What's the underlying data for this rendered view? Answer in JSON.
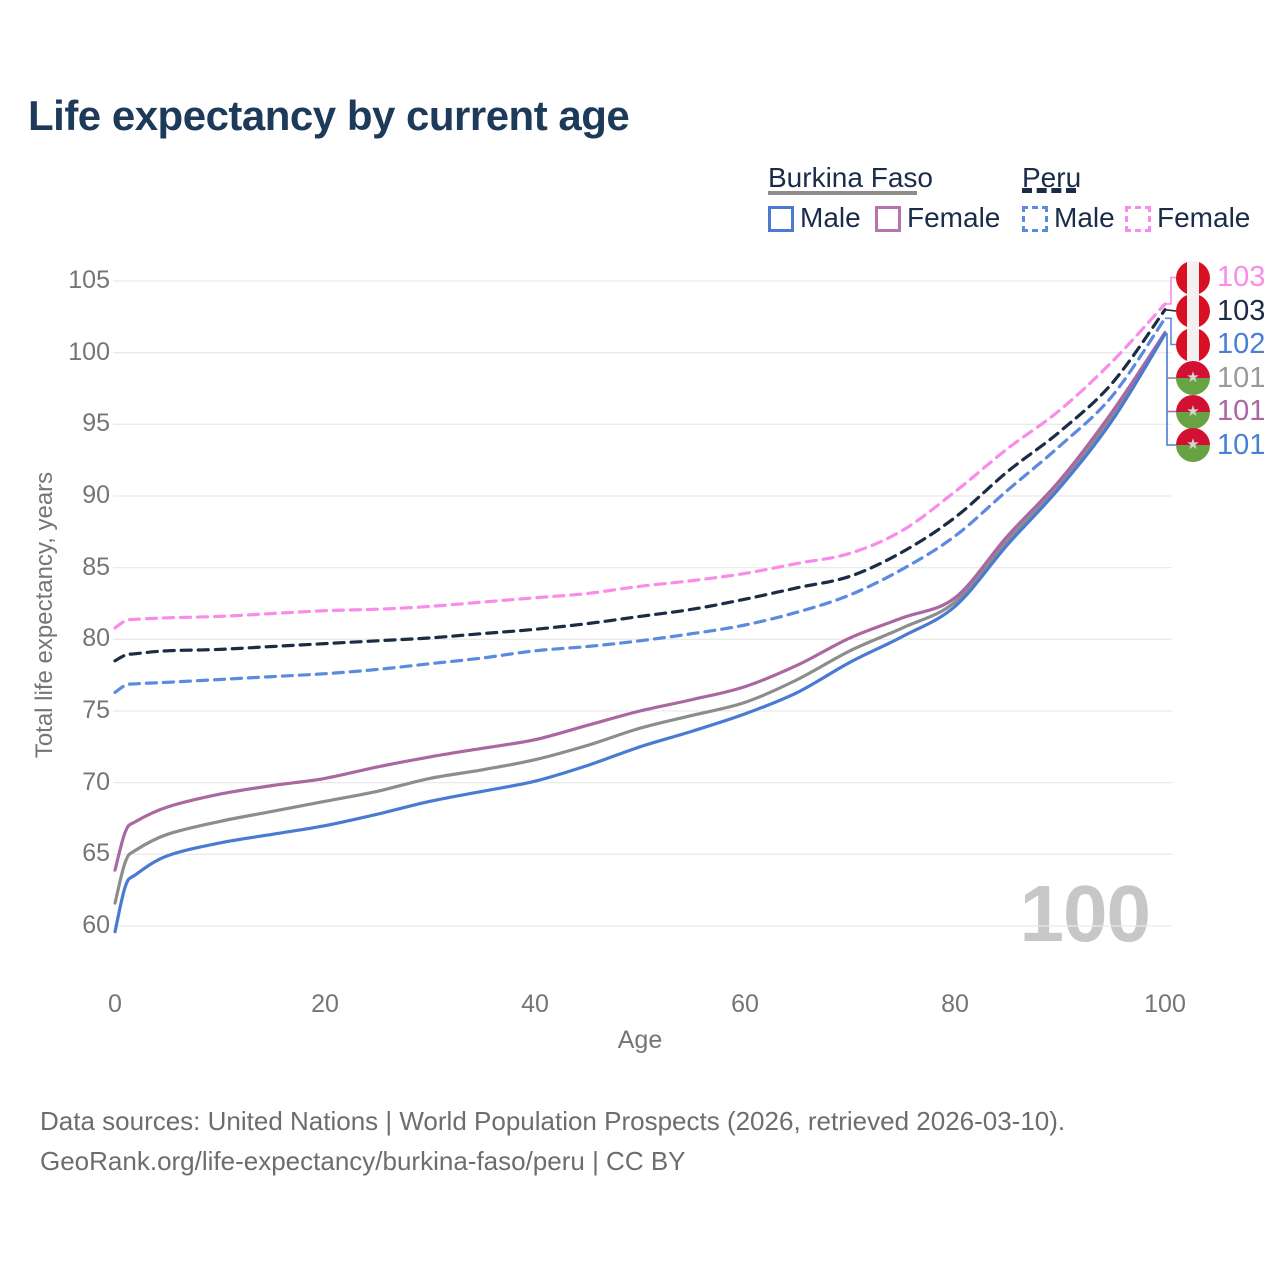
{
  "chart_data": {
    "type": "line",
    "title": "Life expectancy by current age",
    "xlabel": "Age",
    "ylabel": "Total life expectancy, years",
    "xlim": [
      0,
      100
    ],
    "ylim": [
      60,
      105
    ],
    "xticks": [
      0,
      20,
      40,
      60,
      80,
      100
    ],
    "yticks": [
      60,
      65,
      70,
      75,
      80,
      85,
      90,
      95,
      100,
      105
    ],
    "grid": "horizontal",
    "legend_position": "top-right",
    "x": [
      0,
      1,
      2,
      5,
      10,
      15,
      20,
      25,
      30,
      35,
      40,
      45,
      50,
      55,
      60,
      65,
      70,
      75,
      80,
      85,
      90,
      95,
      100
    ],
    "series": [
      {
        "name": "Peru Female",
        "country": "Peru",
        "sex": "Female",
        "style": "dashed",
        "color": "#f98ce9",
        "end_label": "103",
        "values": [
          80.8,
          81.3,
          81.4,
          81.5,
          81.6,
          81.8,
          82.0,
          82.1,
          82.3,
          82.6,
          82.9,
          83.2,
          83.7,
          84.1,
          84.6,
          85.3,
          86.0,
          87.6,
          90.3,
          93.3,
          96.0,
          99.4,
          103.4
        ]
      },
      {
        "name": "Peru Total",
        "country": "Peru",
        "sex": "Both",
        "style": "dashed",
        "color": "#1b2c45",
        "end_label": "103",
        "values": [
          78.5,
          78.9,
          79.0,
          79.2,
          79.3,
          79.5,
          79.7,
          79.9,
          80.1,
          80.4,
          80.7,
          81.1,
          81.6,
          82.1,
          82.8,
          83.6,
          84.4,
          86.1,
          88.5,
          91.7,
          94.5,
          97.9,
          103.0
        ]
      },
      {
        "name": "Peru Male",
        "country": "Peru",
        "sex": "Male",
        "style": "dashed",
        "color": "#5b8adf",
        "end_label": "102",
        "values": [
          76.3,
          76.8,
          76.9,
          77.0,
          77.2,
          77.4,
          77.6,
          77.9,
          78.3,
          78.7,
          79.2,
          79.5,
          79.9,
          80.4,
          81.0,
          81.9,
          83.1,
          84.9,
          87.2,
          90.4,
          93.5,
          97.0,
          102.4
        ]
      },
      {
        "name": "Burkina Faso Total",
        "country": "Burkina Faso",
        "sex": "Both",
        "style": "solid",
        "color": "#8d8d8d",
        "end_label": "101",
        "values": [
          61.6,
          64.5,
          65.3,
          66.4,
          67.3,
          68.0,
          68.7,
          69.4,
          70.3,
          70.9,
          71.6,
          72.6,
          73.8,
          74.7,
          75.6,
          77.2,
          79.2,
          80.8,
          82.6,
          86.9,
          90.8,
          95.6,
          101.4
        ]
      },
      {
        "name": "Burkina Faso Female",
        "country": "Burkina Faso",
        "sex": "Female",
        "style": "solid",
        "color": "#ab67a2",
        "end_label": "101",
        "values": [
          63.9,
          66.6,
          67.3,
          68.3,
          69.2,
          69.8,
          70.3,
          71.1,
          71.8,
          72.4,
          73.0,
          74.0,
          75.0,
          75.8,
          76.7,
          78.2,
          80.1,
          81.5,
          82.9,
          87.2,
          91.1,
          95.9,
          101.4
        ]
      },
      {
        "name": "Burkina Faso Male",
        "country": "Burkina Faso",
        "sex": "Male",
        "style": "solid",
        "color": "#4a7ad2",
        "end_label": "101",
        "values": [
          59.6,
          62.8,
          63.6,
          64.9,
          65.8,
          66.4,
          67.0,
          67.8,
          68.7,
          69.4,
          70.1,
          71.2,
          72.5,
          73.6,
          74.8,
          76.3,
          78.4,
          80.2,
          82.3,
          86.6,
          90.6,
          95.3,
          101.3
        ]
      }
    ]
  },
  "legend": {
    "groups": [
      {
        "label": "Burkina Faso",
        "line_style": "solid",
        "underline_color": "#8d8d8d",
        "items": [
          {
            "label": "Male",
            "color": "#4a7ad2",
            "dashed": false
          },
          {
            "label": "Female",
            "color": "#b873ae",
            "dashed": false
          }
        ]
      },
      {
        "label": "Peru",
        "line_style": "dashed",
        "underline_color": "#1b2c45",
        "items": [
          {
            "label": "Male",
            "color": "#5b8adf",
            "dashed": true
          },
          {
            "label": "Female",
            "color": "#f98ce9",
            "dashed": true
          }
        ]
      }
    ]
  },
  "end_labels": [
    {
      "value": "103",
      "flag": "peru",
      "color": "#f98ce9"
    },
    {
      "value": "103",
      "flag": "peru",
      "color": "#1b2c45"
    },
    {
      "value": "102",
      "flag": "peru",
      "color": "#4a7fd6"
    },
    {
      "value": "101",
      "flag": "burkina-faso",
      "color": "#9a9a9a"
    },
    {
      "value": "101",
      "flag": "burkina-faso",
      "color": "#ab67a2"
    },
    {
      "value": "101",
      "flag": "burkina-faso",
      "color": "#4a7fd6"
    }
  ],
  "watermark": "100",
  "footer": {
    "line1": "Data sources: United Nations | World Population Prospects (2026, retrieved 2026-03-10).",
    "line2": "GeoRank.org/life-expectancy/burkina-faso/peru | CC BY"
  },
  "colors": {
    "title": "#1d3a5a",
    "axis_text": "#757575",
    "grid": "#eaeaea",
    "footer_text": "#6d6d6d",
    "watermark": "#c7c7c7",
    "legend_text": "#1b2c4a"
  }
}
